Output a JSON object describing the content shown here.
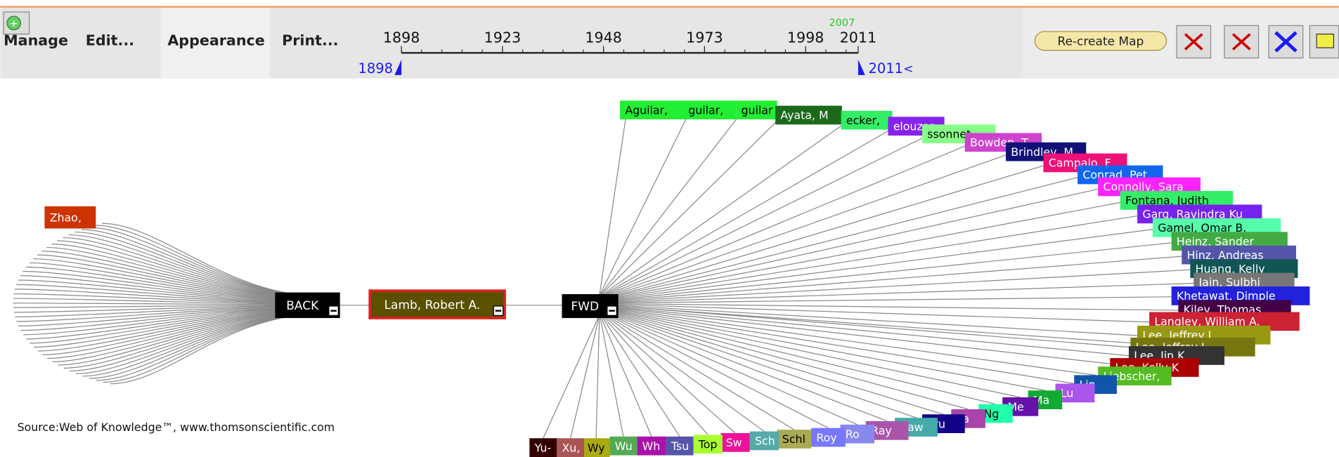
{
  "toolbar": {
    "menu": [
      "Manage",
      "Edit...",
      "Appearance",
      "Print..."
    ],
    "button": "Re-create Map"
  },
  "timeline": {
    "ticks": [
      1898,
      1923,
      1948,
      1973,
      1998,
      2011
    ],
    "range": [
      1898,
      2011
    ],
    "highlight": 2007,
    "start_label": 1898,
    "end_label": 2011,
    "end_marker": "<"
  },
  "source": "Source:Web of Knowledge™, www.thomsonscientific.com",
  "center": "Lamb, Robert A.",
  "back": "BACK",
  "fwd": "FWD",
  "back_nodes": [
    {
      "label": "Zhao,",
      "color": "#cc3300"
    }
  ],
  "fwd_nodes": [
    {
      "label": "Aguilar,",
      "color": "#22ee33"
    },
    {
      "label": "guilar,",
      "color": "#22ee33"
    },
    {
      "label": "guilar",
      "color": "#22ee33"
    },
    {
      "label": "Ayata, M",
      "color": "#1a6a1a"
    },
    {
      "label": "ecker,",
      "color": "#33ee66"
    },
    {
      "label": "elouzar",
      "color": "#8822ee"
    },
    {
      "label": "ssonnet",
      "color": "#88ff88"
    },
    {
      "label": "Bowden, T",
      "color": "#cc44cc"
    },
    {
      "label": "Brindley, M",
      "color": "#111177"
    },
    {
      "label": "Campalo, F",
      "color": "#ee1177"
    },
    {
      "label": "Conrad, Pet",
      "color": "#1166ee"
    },
    {
      "label": "Connolly, Sara",
      "color": "#ff22ff"
    },
    {
      "label": "Fontana, Judith",
      "color": "#33ee66"
    },
    {
      "label": "Garg, Ravindra Ku",
      "color": "#7722ee"
    },
    {
      "label": "Gamel, Omar B.",
      "color": "#55ffaa"
    },
    {
      "label": "Heinz, Sander",
      "color": "#44aa44"
    },
    {
      "label": "Hinz, Andreas",
      "color": "#5555aa"
    },
    {
      "label": "Huang, Kelly",
      "color": "#115555"
    },
    {
      "label": "Jain, Sulbhi",
      "color": "#777777"
    },
    {
      "label": "Khetawat, Dimple",
      "color": "#2222dd"
    },
    {
      "label": "Kiley, Thomas",
      "color": "#440044"
    },
    {
      "label": "Langley, William A.",
      "color": "#cc2233"
    },
    {
      "label": "Lee, Jeffrey L.",
      "color": "#999911"
    },
    {
      "label": "Lee, Jeffrey L.",
      "color": "#777711"
    },
    {
      "label": "Lee, Jin K.",
      "color": "#333333"
    },
    {
      "label": "Lee, Kelly K",
      "color": "#aa0000"
    },
    {
      "label": "Liebscher,",
      "color": "#55bb22"
    },
    {
      "label": "Lin",
      "color": "#1155aa"
    },
    {
      "label": "Lu",
      "color": "#aa55ee"
    },
    {
      "label": "Ma",
      "color": "#11aa33"
    },
    {
      "label": "Me",
      "color": "#6611aa"
    },
    {
      "label": "Ng",
      "color": "#22ffaa"
    },
    {
      "label": "Pa",
      "color": "#aa44aa"
    },
    {
      "label": "Pru",
      "color": "#110088"
    },
    {
      "label": "Raw",
      "color": "#44aaaa"
    },
    {
      "label": "Ray",
      "color": "#aa55aa"
    },
    {
      "label": "Ro",
      "color": "#8888ee"
    },
    {
      "label": "Roy",
      "color": "#7777ff"
    },
    {
      "label": "Schl",
      "color": "#aaaa55"
    },
    {
      "label": "Sch",
      "color": "#55aaaa"
    },
    {
      "label": "Sw",
      "color": "#ee1199"
    },
    {
      "label": "Top",
      "color": "#aaff33"
    },
    {
      "label": "Tsu",
      "color": "#5555aa"
    },
    {
      "label": "Wh",
      "color": "#aa11aa"
    },
    {
      "label": "Wu",
      "color": "#55aa55"
    },
    {
      "label": "Wy",
      "color": "#aaaa11"
    },
    {
      "label": "Xu,",
      "color": "#aa5555"
    },
    {
      "label": "Yu-",
      "color": "#330000"
    }
  ]
}
